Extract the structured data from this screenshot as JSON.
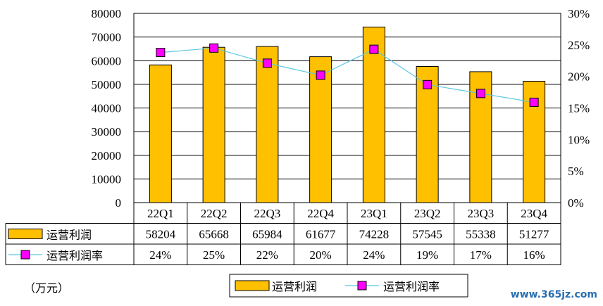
{
  "chart_data": {
    "type": "bar",
    "categories": [
      "22Q1",
      "22Q2",
      "22Q3",
      "22Q4",
      "23Q1",
      "23Q2",
      "23Q3",
      "23Q4"
    ],
    "series": [
      {
        "name": "运营利润",
        "type": "bar",
        "axis": "left",
        "values": [
          58204,
          65668,
          65984,
          61677,
          74228,
          57545,
          55338,
          51277
        ],
        "color": "#FFC000"
      },
      {
        "name": "运营利润率",
        "type": "line",
        "axis": "right",
        "values": [
          23.8,
          24.5,
          22.1,
          20.2,
          24.3,
          18.7,
          17.3,
          15.9
        ],
        "labels": [
          "24%",
          "25%",
          "22%",
          "20%",
          "24%",
          "19%",
          "17%",
          "16%"
        ],
        "color": "#5BC8E0",
        "marker_color": "#FF00FF"
      }
    ],
    "y_left": {
      "min": 0,
      "max": 80000,
      "ticks": [
        "0",
        "10000",
        "20000",
        "30000",
        "40000",
        "50000",
        "60000",
        "70000",
        "80000"
      ]
    },
    "y_right": {
      "min": 0,
      "max": 30,
      "ticks": [
        "0%",
        "5%",
        "10%",
        "15%",
        "20%",
        "25%",
        "30%"
      ]
    },
    "grid": true,
    "legend_position": "bottom",
    "table": true
  },
  "unit_label": "（万元）",
  "watermark": "www.365jz.com"
}
